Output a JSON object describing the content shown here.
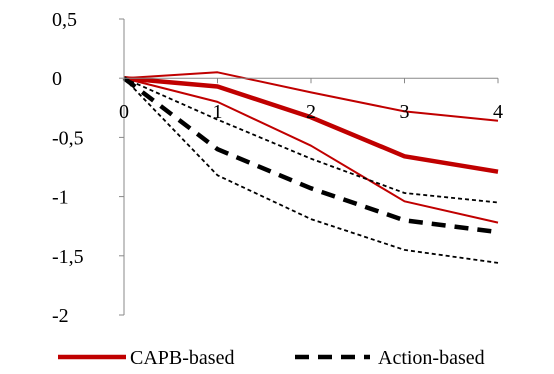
{
  "chart_data": {
    "type": "line",
    "title": "",
    "xlabel": "",
    "ylabel": "",
    "x": [
      0,
      1,
      2,
      3,
      4
    ],
    "xlim": [
      0,
      4
    ],
    "ylim": [
      -2,
      0.5
    ],
    "y_ticks": [
      0.5,
      0,
      -0.5,
      -1,
      -1.5,
      -2
    ],
    "y_tick_labels": [
      "0,5",
      "0",
      "-0,5",
      "-1",
      "-1,5",
      "-2"
    ],
    "x_tick_labels": [
      "0",
      "1",
      "2",
      "3",
      "4"
    ],
    "grid": false,
    "legend_position": "bottom",
    "legend": [
      {
        "label": "CAPB-based",
        "color": "#c00000",
        "style": "solid"
      },
      {
        "label": "Action-based",
        "color": "#000000",
        "style": "dashed"
      }
    ],
    "series": [
      {
        "group": "capb",
        "role": "estimate",
        "color": "#c00000",
        "dash": "solid",
        "values": [
          0,
          -0.07,
          -0.33,
          -0.66,
          -0.79
        ]
      },
      {
        "group": "capb",
        "role": "upper band",
        "color": "#c00000",
        "dash": "solid",
        "values": [
          0,
          0.05,
          -0.12,
          -0.28,
          -0.36
        ]
      },
      {
        "group": "capb",
        "role": "lower band",
        "color": "#c00000",
        "dash": "solid",
        "values": [
          0,
          -0.2,
          -0.57,
          -1.04,
          -1.22
        ]
      },
      {
        "group": "action",
        "role": "estimate",
        "color": "#000000",
        "dash": "dashed",
        "values": [
          0,
          -0.6,
          -0.93,
          -1.2,
          -1.3
        ]
      },
      {
        "group": "action",
        "role": "upper band",
        "color": "#000000",
        "dash": "dotted",
        "values": [
          0,
          -0.35,
          -0.68,
          -0.97,
          -1.05
        ]
      },
      {
        "group": "action",
        "role": "lower band",
        "color": "#000000",
        "dash": "dotted",
        "values": [
          0,
          -0.82,
          -1.19,
          -1.45,
          -1.56
        ]
      }
    ]
  }
}
